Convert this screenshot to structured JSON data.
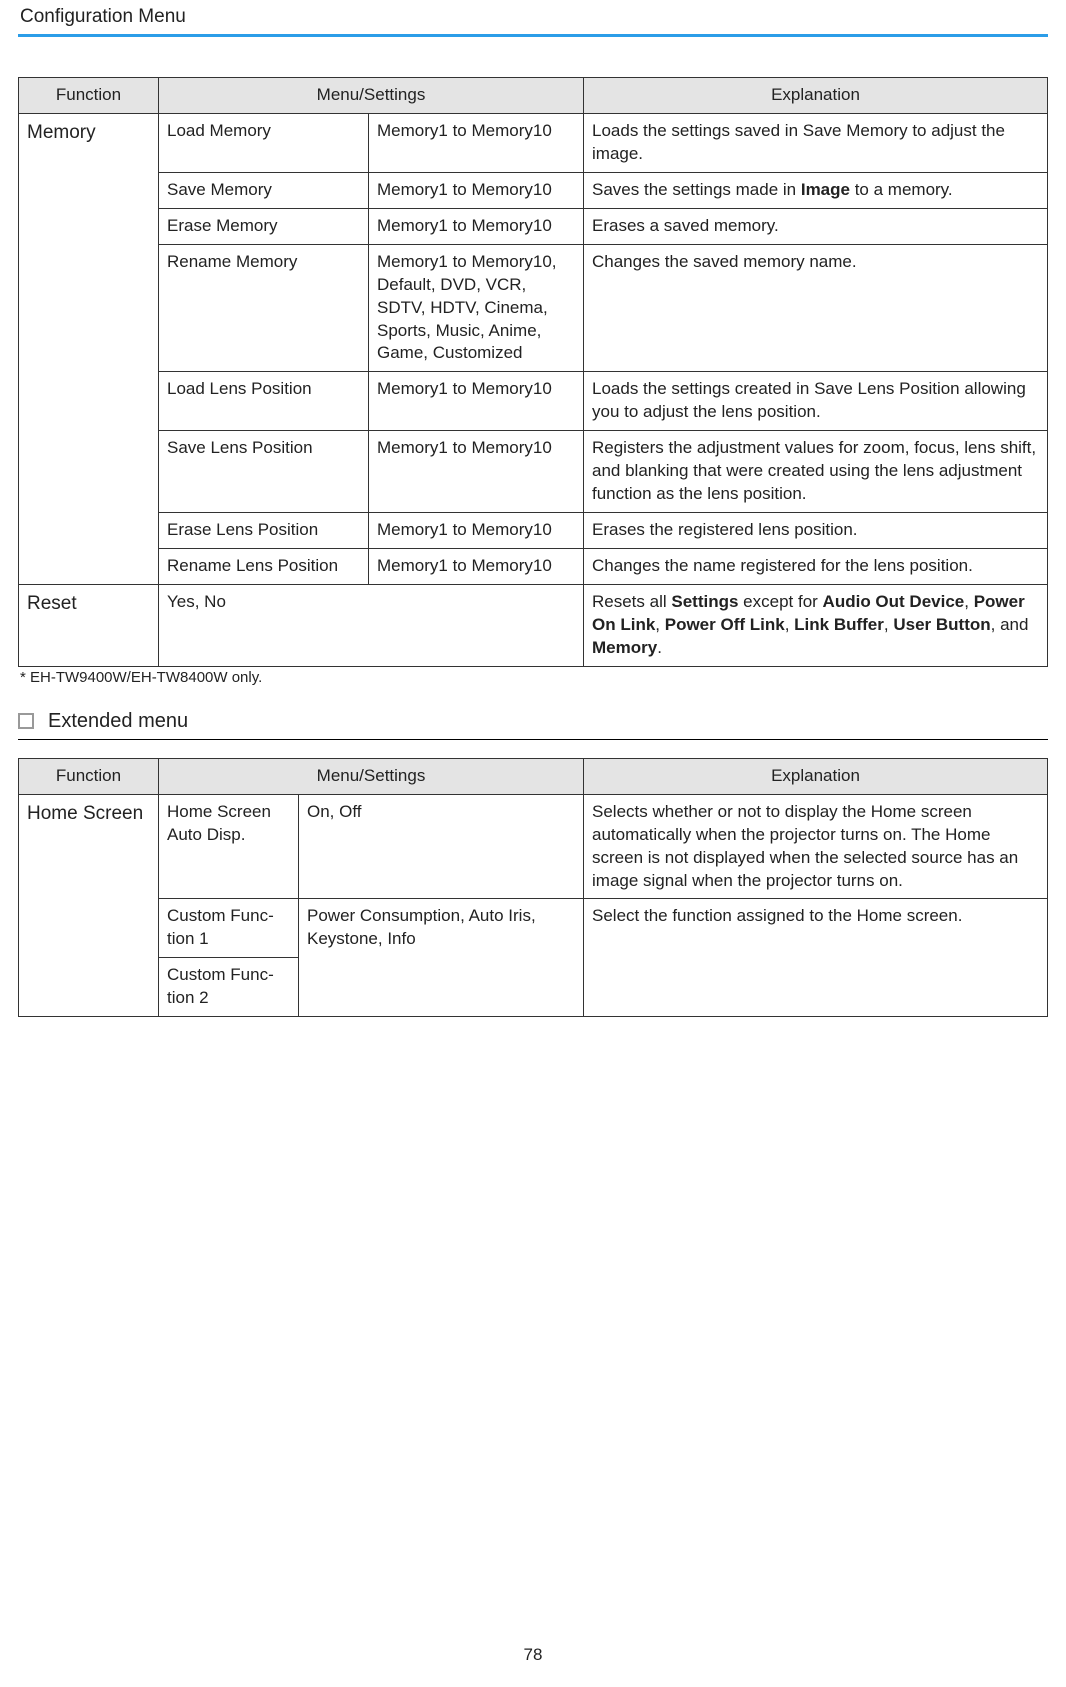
{
  "header": "Configuration Menu",
  "page_number": "78",
  "footnote": "* EH-TW9400W/EH-TW8400W only.",
  "section2_title": "Extended menu",
  "t1_headers": {
    "c1": "Function",
    "c2": "Menu/Settings",
    "c3": "Explanation"
  },
  "t2_headers": {
    "c1": "Function",
    "c2": "Menu/Settings",
    "c3": "Explanation"
  },
  "t1": {
    "memory_label": "Memory",
    "reset_label": "Reset",
    "r1": {
      "a": "Load Memory",
      "b": "Memory1 to Memory10",
      "c_pre": "Loads the settings saved in Save Memory to adjust the image."
    },
    "r2": {
      "a": "Save Memory",
      "b": "Memory1 to Memory10",
      "c_pre": "Saves the settings made in ",
      "c_bold": "Image",
      "c_post": " to a memory."
    },
    "r3": {
      "a": "Erase Memory",
      "b": "Memory1 to Memory10",
      "c": "Erases a saved memory."
    },
    "r4": {
      "a": "Rename Memory",
      "b": "Memory1 to Memory10, Default, DVD, VCR, SDTV, HDTV, Cinema, Sports, Music, Anime, Game, Cus­tomized",
      "c": "Changes the saved memory name."
    },
    "r5": {
      "a": "Load Lens Position",
      "b": "Memory1 to Memory10",
      "c": "Loads the settings created in Save Lens Position allowing you to adjust the lens position."
    },
    "r6": {
      "a": "Save Lens Position",
      "b": "Memory1 to Memory10",
      "c": "Registers the adjustment values for zoom, focus, lens shift, and blanking that were created using the lens ad­justment function as the lens posi­tion."
    },
    "r7": {
      "a": "Erase Lens Position",
      "b": "Memory1 to Memory10",
      "c": "Erases the registered lens position."
    },
    "r8": {
      "a": "Rename Lens Position",
      "b": "Memory1 to Memory10",
      "c": "Changes the name registered for the lens position."
    },
    "reset": {
      "opts": "Yes, No",
      "pre": "Resets all ",
      "b1": "Settings",
      "m1": " except for ",
      "b2": "Audio Out Device",
      "s2": ", ",
      "b3": "Power On Link",
      "s3": ", ",
      "b4": "Power Off Link",
      "s4": ", ",
      "b5": "Link Buffer",
      "s5": ", ",
      "b6": "User Button",
      "s6": ", and ",
      "b7": "Memory",
      "end": "."
    }
  },
  "t2": {
    "hs_label": "Home Screen",
    "r1": {
      "a": "Home Screen Auto Disp.",
      "b": "On, Off",
      "c": "Selects whether or not to display the Home screen automatically when the projector turns on. The Home screen is not displayed when the selected source has an image signal when the projector turns on."
    },
    "r2": {
      "a": "Custom Func­tion 1",
      "b": "Power Consumption, Auto Iris, Key­stone, Info",
      "c": "Select the function assigned to the Home screen."
    },
    "r3": {
      "a": "Custom Func­tion 2"
    }
  }
}
